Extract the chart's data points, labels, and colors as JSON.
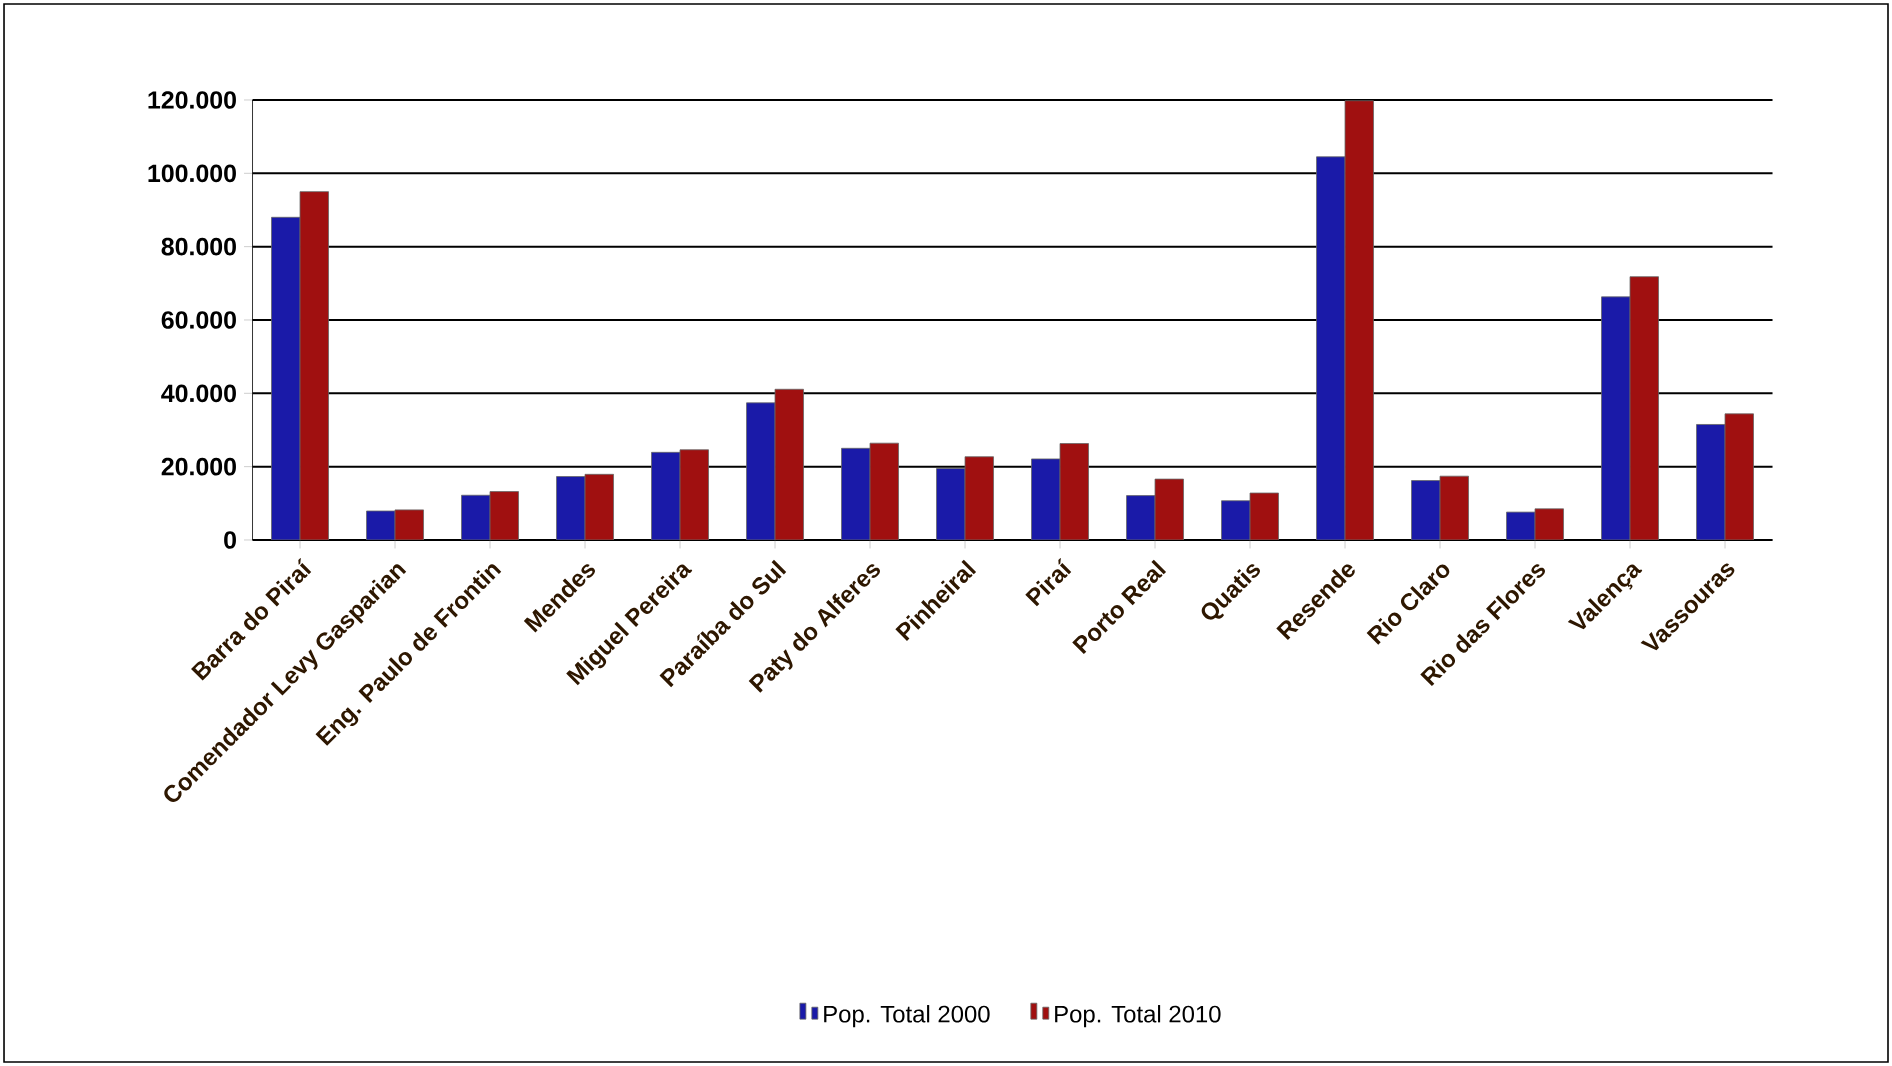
{
  "chart_data": {
    "type": "bar",
    "categories": [
      "Barra do Piraí",
      "Comendador Levy Gasparian",
      "Eng. Paulo de Frontin",
      "Mendes",
      "Miguel Pereira",
      "Paraíba do Sul",
      "Paty do Alferes",
      "Pinheiral",
      "Piraí",
      "Porto Real",
      "Quatis",
      "Resende",
      "Rio Claro",
      "Rio das Flores",
      "Valença",
      "Vassouras"
    ],
    "series": [
      {
        "name": "Pop. Total 2000",
        "color": "#1a1aa8",
        "values": [
          88000,
          7900,
          12200,
          17300,
          23900,
          37400,
          25000,
          19500,
          22100,
          12100,
          10700,
          104500,
          16200,
          7600,
          66300,
          31500
        ]
      },
      {
        "name": "Pop. Total 2010",
        "color": "#a01010",
        "values": [
          95000,
          8200,
          13200,
          17900,
          24600,
          41100,
          26400,
          22700,
          26300,
          16600,
          12800,
          119800,
          17400,
          8500,
          71800,
          34400
        ]
      }
    ],
    "ylim": [
      0,
      120000
    ],
    "yticks": [
      {
        "value": 0,
        "label": "0"
      },
      {
        "value": 20000,
        "label": "20.000"
      },
      {
        "value": 40000,
        "label": "40.000"
      },
      {
        "value": 60000,
        "label": "60.000"
      },
      {
        "value": 80000,
        "label": "80.000"
      },
      {
        "value": 100000,
        "label": "100.000"
      },
      {
        "value": 120000,
        "label": "120.000"
      }
    ],
    "grid": "y",
    "legend": "bottom"
  }
}
